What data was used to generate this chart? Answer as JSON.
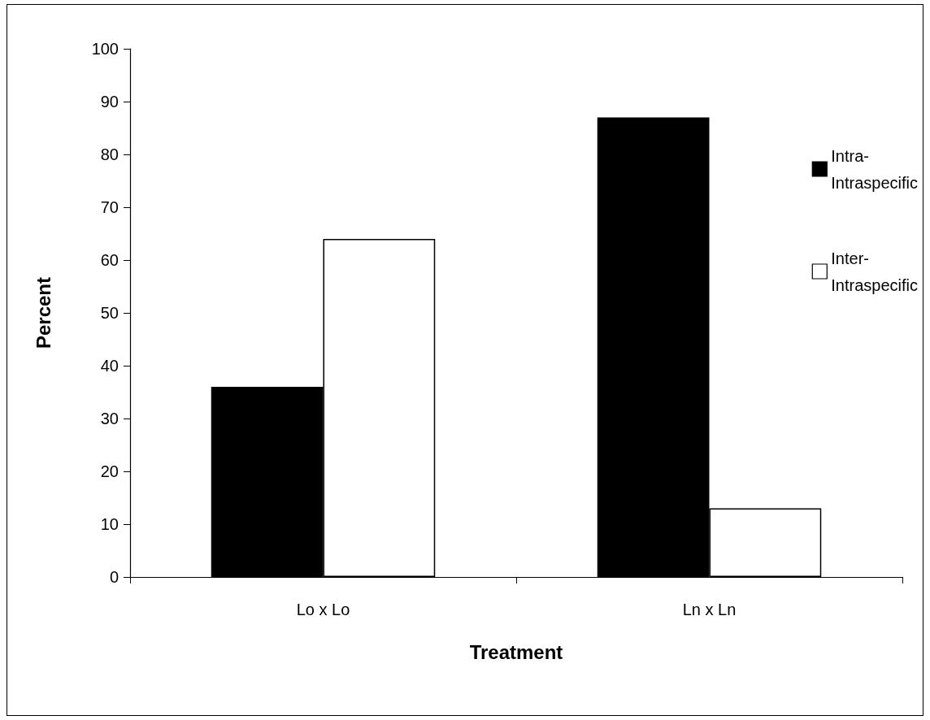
{
  "chart_data": {
    "type": "bar",
    "xlabel": "Treatment",
    "ylabel": "Percent",
    "categories": [
      "Lo x Lo",
      "Ln x Ln"
    ],
    "series": [
      {
        "name": "Intra-\nIntraspecific",
        "color": "#000000",
        "values": [
          36,
          87
        ]
      },
      {
        "name": "Inter-\nIntraspecific",
        "color": "#ffffff",
        "values": [
          64,
          13
        ]
      }
    ],
    "ylim": [
      0,
      100
    ],
    "yticks": [
      0,
      10,
      20,
      30,
      40,
      50,
      60,
      70,
      80,
      90,
      100
    ],
    "grid": false,
    "legend": "right"
  }
}
